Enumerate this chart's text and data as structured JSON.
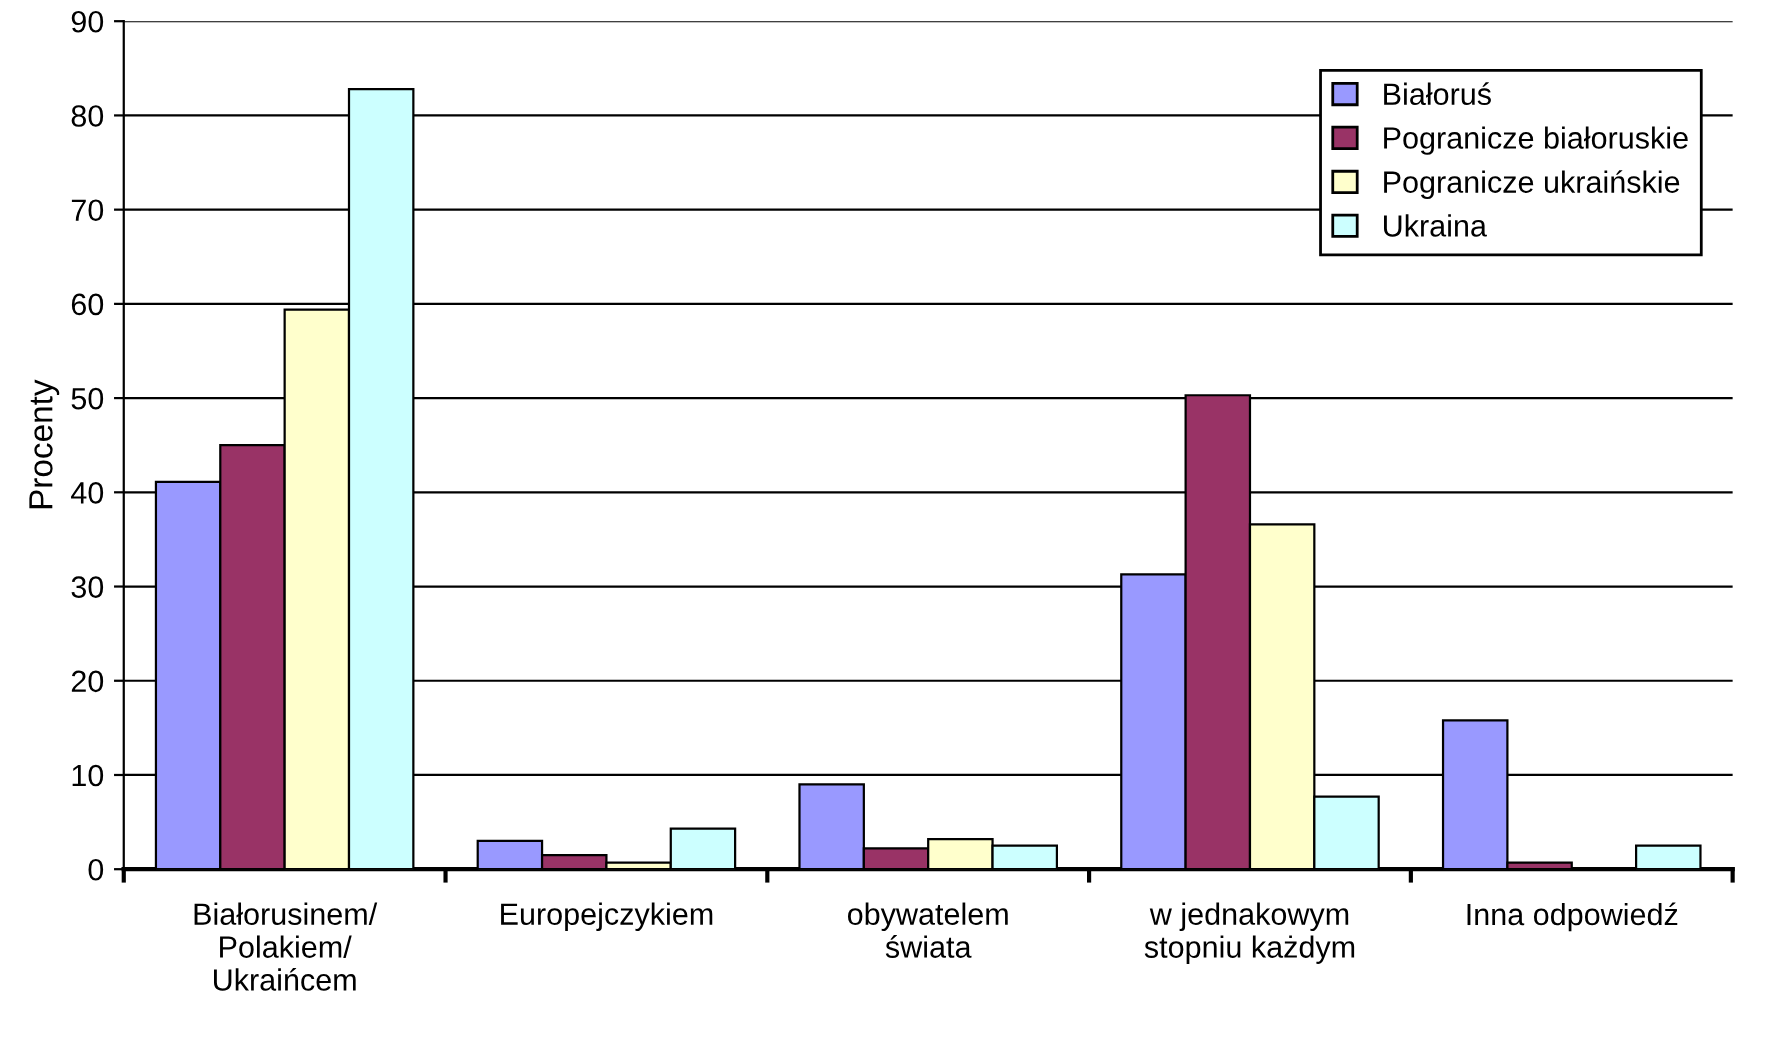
{
  "chart_data": {
    "type": "bar",
    "ylabel": "Procenty",
    "categories": [
      "Białorusinem/\nPolakiem/\nUkraińcem",
      "Europejczykiem",
      "obywatelem\nświata",
      "w jednakowym\nstopniu każdym",
      "Inna odpowiedź"
    ],
    "series": [
      {
        "name": "Białoruś",
        "color": "#9999ff",
        "values": [
          41.1,
          3.0,
          9.0,
          31.3,
          15.8
        ]
      },
      {
        "name": "Pogranicze białoruskie",
        "color": "#993366",
        "values": [
          45.0,
          1.5,
          2.2,
          50.3,
          0.7
        ]
      },
      {
        "name": "Pogranicze ukraińskie",
        "color": "#ffffcc",
        "values": [
          59.4,
          0.7,
          3.2,
          36.6,
          null
        ]
      },
      {
        "name": "Ukraina",
        "color": "#ccffff",
        "values": [
          82.8,
          4.3,
          2.5,
          7.7,
          2.5
        ]
      }
    ],
    "ylim": [
      0,
      90
    ],
    "yticks": [
      0,
      10,
      20,
      30,
      40,
      50,
      60,
      70,
      80,
      90
    ],
    "grid": "y",
    "legend": "top right"
  }
}
